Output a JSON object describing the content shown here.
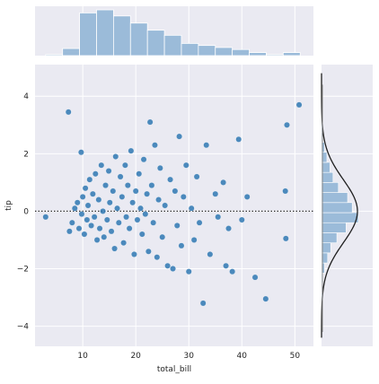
{
  "chart_data": {
    "type": "scatter",
    "kind": "residual joint plot",
    "xlabel": "total_bill",
    "ylabel": "tip",
    "xlim": [
      1,
      53.5
    ],
    "ylim": [
      -4.7,
      5.1
    ],
    "xticks": [
      10,
      20,
      30,
      40,
      50
    ],
    "yticks": [
      -4,
      -2,
      0,
      2,
      4
    ],
    "grid": true,
    "reference_line": {
      "y": 0,
      "style": "dotted"
    },
    "colors": {
      "points": "#2f78b3",
      "hist": "#9bbbd9",
      "background": "#eaeaf2",
      "kde": "#1f1f1f"
    },
    "points": [
      [
        3,
        -0.2
      ],
      [
        7.3,
        3.45
      ],
      [
        7.5,
        -0.7
      ],
      [
        8,
        -0.4
      ],
      [
        8.5,
        0.1
      ],
      [
        9,
        0.3
      ],
      [
        9.3,
        -0.6
      ],
      [
        9.7,
        2.05
      ],
      [
        9.8,
        -0.1
      ],
      [
        10,
        0.5
      ],
      [
        10.3,
        -0.8
      ],
      [
        10.5,
        0.8
      ],
      [
        10.8,
        -0.3
      ],
      [
        11,
        0.2
      ],
      [
        11.3,
        1.1
      ],
      [
        11.6,
        -0.5
      ],
      [
        11.9,
        0.6
      ],
      [
        12.2,
        -0.2
      ],
      [
        12.4,
        1.3
      ],
      [
        12.7,
        -1.0
      ],
      [
        13,
        0.4
      ],
      [
        13.2,
        -0.6
      ],
      [
        13.5,
        1.6
      ],
      [
        13.8,
        0.0
      ],
      [
        14,
        -0.9
      ],
      [
        14.3,
        0.9
      ],
      [
        14.6,
        -0.3
      ],
      [
        14.9,
        1.4
      ],
      [
        15.1,
        0.3
      ],
      [
        15.4,
        -0.7
      ],
      [
        15.7,
        0.7
      ],
      [
        16,
        -1.3
      ],
      [
        16.2,
        1.9
      ],
      [
        16.5,
        0.1
      ],
      [
        16.8,
        -0.4
      ],
      [
        17.1,
        1.2
      ],
      [
        17.4,
        0.5
      ],
      [
        17.7,
        -1.1
      ],
      [
        18,
        1.6
      ],
      [
        18.2,
        -0.2
      ],
      [
        18.5,
        0.9
      ],
      [
        18.8,
        -0.6
      ],
      [
        19.1,
        2.1
      ],
      [
        19.4,
        0.3
      ],
      [
        19.7,
        -1.5
      ],
      [
        20,
        0.7
      ],
      [
        20.3,
        -0.3
      ],
      [
        20.6,
        1.3
      ],
      [
        20.9,
        0.1
      ],
      [
        21.2,
        -0.8
      ],
      [
        21.5,
        1.8
      ],
      [
        21.8,
        -0.1
      ],
      [
        22.1,
        0.6
      ],
      [
        22.4,
        -1.4
      ],
      [
        22.7,
        3.1
      ],
      [
        23,
        0.9
      ],
      [
        23.3,
        -0.4
      ],
      [
        23.6,
        2.3
      ],
      [
        24,
        -1.6
      ],
      [
        24.3,
        0.4
      ],
      [
        24.6,
        1.5
      ],
      [
        25,
        -0.9
      ],
      [
        25.5,
        0.2
      ],
      [
        26,
        -1.9
      ],
      [
        26.5,
        1.1
      ],
      [
        27,
        -2.0
      ],
      [
        27.4,
        0.7
      ],
      [
        27.8,
        -0.5
      ],
      [
        28.2,
        2.6
      ],
      [
        28.6,
        -1.2
      ],
      [
        29,
        0.5
      ],
      [
        29.5,
        1.6
      ],
      [
        30,
        -2.1
      ],
      [
        30.5,
        0.1
      ],
      [
        31,
        -1.0
      ],
      [
        31.5,
        1.2
      ],
      [
        32,
        -0.4
      ],
      [
        32.7,
        -3.2
      ],
      [
        33.3,
        2.3
      ],
      [
        34,
        -1.5
      ],
      [
        35,
        0.6
      ],
      [
        35.5,
        -0.2
      ],
      [
        36.5,
        1.0
      ],
      [
        37,
        -1.9
      ],
      [
        37.5,
        -0.6
      ],
      [
        38.2,
        -2.1
      ],
      [
        39.4,
        2.5
      ],
      [
        40,
        -0.3
      ],
      [
        41,
        0.5
      ],
      [
        42.5,
        -2.3
      ],
      [
        44.5,
        -3.05
      ],
      [
        48.2,
        0.7
      ],
      [
        48.3,
        -0.95
      ],
      [
        48.5,
        3.0
      ],
      [
        50.8,
        3.7
      ]
    ],
    "top_hist": {
      "bin_edges": [
        3,
        6.2,
        9.4,
        12.6,
        15.8,
        19,
        22.2,
        25.4,
        28.6,
        31.8,
        35,
        38.2,
        41.4,
        44.6,
        47.8,
        51
      ],
      "counts": [
        1,
        7,
        42,
        45,
        39,
        32,
        25,
        20,
        12,
        10,
        8,
        6,
        3,
        1,
        3
      ]
    },
    "right_hist": {
      "bin_edges": [
        -3.2,
        -2.85,
        -2.5,
        -2.15,
        -1.8,
        -1.45,
        -1.1,
        -0.75,
        -0.4,
        -0.05,
        0.3,
        0.65,
        1.0,
        1.35,
        1.7,
        2.05,
        2.4,
        2.75,
        3.1,
        3.45,
        3.8
      ],
      "counts": [
        1,
        0,
        2,
        4,
        8,
        12,
        20,
        32,
        48,
        40,
        34,
        22,
        15,
        11,
        7,
        4,
        2,
        1,
        1,
        1
      ]
    }
  }
}
